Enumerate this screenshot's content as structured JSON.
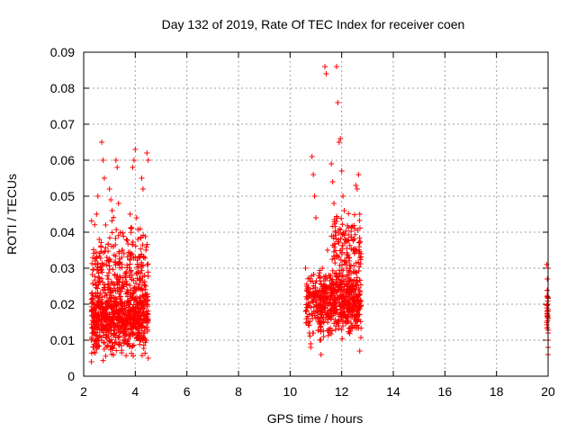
{
  "chart_data": {
    "type": "scatter",
    "title": "Day 132 of 2019, Rate Of TEC Index for receiver coen",
    "xlabel": "GPS time / hours",
    "ylabel": "ROTI / TECUs",
    "xlim": [
      2,
      20
    ],
    "ylim": [
      0,
      0.09
    ],
    "xticks": [
      2,
      4,
      6,
      8,
      10,
      12,
      14,
      16,
      18,
      20
    ],
    "yticks": [
      0,
      0.01,
      0.02,
      0.03,
      0.04,
      0.05,
      0.06,
      0.07,
      0.08,
      0.09
    ],
    "ytick_labels": [
      "0",
      "0.01",
      "0.02",
      "0.03",
      "0.04",
      "0.05",
      "0.06",
      "0.07",
      "0.08",
      "0.09"
    ],
    "grid": true,
    "marker": "+",
    "color": "#ff0000",
    "series": [
      {
        "name": "",
        "points": [
          [
            2.3,
            0.004
          ],
          [
            2.35,
            0.012
          ],
          [
            2.4,
            0.02
          ],
          [
            2.45,
            0.031
          ],
          [
            2.5,
            0.045
          ],
          [
            2.55,
            0.05
          ],
          [
            2.6,
            0.038
          ],
          [
            2.65,
            0.015
          ],
          [
            2.7,
            0.065
          ],
          [
            2.75,
            0.06
          ],
          [
            2.8,
            0.055
          ],
          [
            2.85,
            0.042
          ],
          [
            2.9,
            0.033
          ],
          [
            2.95,
            0.027
          ],
          [
            3.0,
            0.052
          ],
          [
            3.05,
            0.049
          ],
          [
            3.1,
            0.046
          ],
          [
            3.15,
            0.036
          ],
          [
            3.2,
            0.028
          ],
          [
            3.25,
            0.06
          ],
          [
            3.3,
            0.058
          ],
          [
            3.35,
            0.048
          ],
          [
            3.4,
            0.022
          ],
          [
            3.45,
            0.018
          ],
          [
            3.5,
            0.035
          ],
          [
            3.55,
            0.012
          ],
          [
            3.6,
            0.026
          ],
          [
            3.65,
            0.029
          ],
          [
            3.7,
            0.024
          ],
          [
            3.75,
            0.021
          ],
          [
            3.8,
            0.045
          ],
          [
            3.85,
            0.041
          ],
          [
            3.9,
            0.058
          ],
          [
            3.95,
            0.06
          ],
          [
            4.0,
            0.063
          ],
          [
            4.05,
            0.044
          ],
          [
            4.1,
            0.038
          ],
          [
            4.15,
            0.033
          ],
          [
            4.2,
            0.027
          ],
          [
            4.25,
            0.055
          ],
          [
            4.3,
            0.052
          ],
          [
            4.35,
            0.028
          ],
          [
            4.4,
            0.025
          ],
          [
            4.45,
            0.062
          ],
          [
            4.5,
            0.06
          ],
          [
            2.3,
            0.01
          ],
          [
            2.4,
            0.015
          ],
          [
            2.5,
            0.009
          ],
          [
            2.6,
            0.011
          ],
          [
            2.7,
            0.013
          ],
          [
            2.8,
            0.016
          ],
          [
            2.9,
            0.019
          ],
          [
            3.0,
            0.01
          ],
          [
            3.1,
            0.008
          ],
          [
            3.2,
            0.012
          ],
          [
            3.3,
            0.014
          ],
          [
            3.4,
            0.017
          ],
          [
            3.5,
            0.02
          ],
          [
            3.6,
            0.013
          ],
          [
            3.7,
            0.009
          ],
          [
            3.8,
            0.011
          ],
          [
            3.9,
            0.015
          ],
          [
            4.0,
            0.018
          ],
          [
            4.1,
            0.012
          ],
          [
            4.2,
            0.01
          ],
          [
            4.3,
            0.014
          ],
          [
            4.4,
            0.016
          ],
          [
            4.5,
            0.005
          ],
          [
            10.6,
            0.03
          ],
          [
            10.65,
            0.025
          ],
          [
            10.7,
            0.02
          ],
          [
            10.75,
            0.012
          ],
          [
            10.8,
            0.008
          ],
          [
            10.85,
            0.061
          ],
          [
            10.9,
            0.056
          ],
          [
            10.95,
            0.05
          ],
          [
            11.0,
            0.044
          ],
          [
            11.05,
            0.022
          ],
          [
            11.1,
            0.015
          ],
          [
            11.15,
            0.01
          ],
          [
            11.2,
            0.006
          ],
          [
            11.25,
            0.03
          ],
          [
            11.3,
            0.025
          ],
          [
            11.35,
            0.086
          ],
          [
            11.4,
            0.084
          ],
          [
            11.45,
            0.035
          ],
          [
            11.5,
            0.028
          ],
          [
            11.55,
            0.022
          ],
          [
            11.6,
            0.059
          ],
          [
            11.65,
            0.054
          ],
          [
            11.7,
            0.048
          ],
          [
            11.75,
            0.04
          ],
          [
            11.8,
            0.086
          ],
          [
            11.85,
            0.076
          ],
          [
            11.9,
            0.065
          ],
          [
            11.95,
            0.066
          ],
          [
            12.0,
            0.057
          ],
          [
            12.05,
            0.05
          ],
          [
            12.1,
            0.046
          ],
          [
            12.15,
            0.038
          ],
          [
            12.2,
            0.03
          ],
          [
            12.25,
            0.025
          ],
          [
            12.3,
            0.022
          ],
          [
            12.35,
            0.018
          ],
          [
            12.4,
            0.014
          ],
          [
            12.45,
            0.035
          ],
          [
            12.5,
            0.041
          ],
          [
            12.55,
            0.053
          ],
          [
            12.6,
            0.052
          ],
          [
            12.65,
            0.056
          ],
          [
            12.7,
            0.045
          ],
          [
            10.6,
            0.018
          ],
          [
            10.7,
            0.015
          ],
          [
            10.8,
            0.009
          ],
          [
            10.9,
            0.012
          ],
          [
            11.0,
            0.016
          ],
          [
            11.1,
            0.019
          ],
          [
            11.2,
            0.013
          ],
          [
            11.3,
            0.011
          ],
          [
            11.4,
            0.017
          ],
          [
            11.5,
            0.02
          ],
          [
            11.6,
            0.023
          ],
          [
            11.7,
            0.019
          ],
          [
            11.8,
            0.015
          ],
          [
            11.9,
            0.02
          ],
          [
            12.0,
            0.024
          ],
          [
            12.1,
            0.018
          ],
          [
            12.2,
            0.016
          ],
          [
            12.3,
            0.021
          ],
          [
            12.4,
            0.026
          ],
          [
            12.5,
            0.019
          ],
          [
            12.6,
            0.014
          ],
          [
            12.7,
            0.007
          ],
          [
            19.95,
            0.031
          ],
          [
            19.97,
            0.027
          ],
          [
            19.98,
            0.022
          ],
          [
            19.99,
            0.02
          ],
          [
            20.0,
            0.018
          ],
          [
            20.0,
            0.016
          ],
          [
            20.0,
            0.012
          ],
          [
            20.0,
            0.01
          ],
          [
            20.0,
            0.008
          ],
          [
            20.0,
            0.006
          ],
          [
            20.0,
            0.03
          ]
        ]
      }
    ],
    "dense_regions": [
      {
        "x": [
          2.3,
          4.5
        ],
        "y_center": 0.016,
        "y_spread": 0.009,
        "n": 700
      },
      {
        "x": [
          2.3,
          4.5
        ],
        "y_center": 0.03,
        "y_spread": 0.012,
        "n": 250
      },
      {
        "x": [
          10.6,
          11.1
        ],
        "y_center": 0.02,
        "y_spread": 0.008,
        "n": 90
      },
      {
        "x": [
          11.1,
          12.75
        ],
        "y_center": 0.021,
        "y_spread": 0.009,
        "n": 500
      },
      {
        "x": [
          11.6,
          12.75
        ],
        "y_center": 0.036,
        "y_spread": 0.01,
        "n": 120
      },
      {
        "x": [
          19.95,
          20.0
        ],
        "y_center": 0.018,
        "y_spread": 0.008,
        "n": 25
      }
    ]
  }
}
